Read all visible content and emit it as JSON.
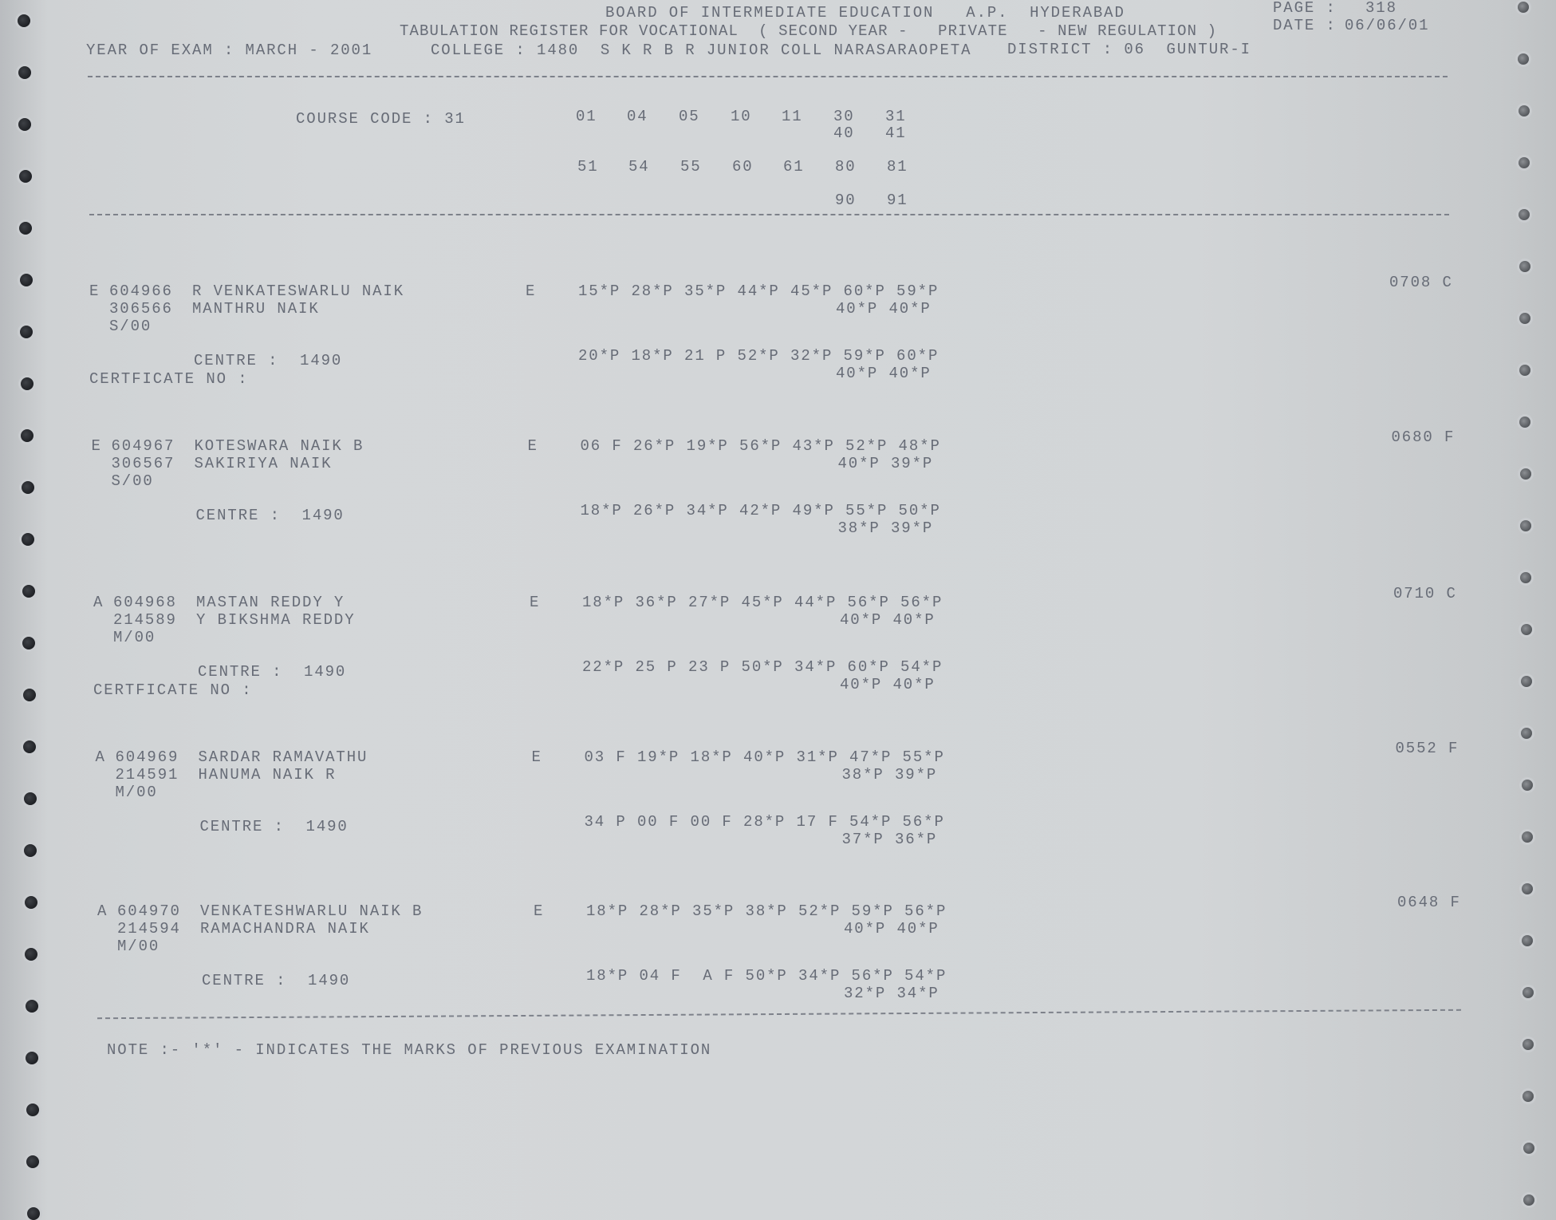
{
  "header": {
    "board": "BOARD OF INTERMEDIATE EDUCATION   A.P.  HYDERABAD",
    "page_label": "PAGE :",
    "page_number": "318",
    "register": "TABULATION REGISTER FOR VOCATIONAL  ( SECOND YEAR -   PRIVATE   - NEW REGULATION )",
    "date_label": "DATE :",
    "date": "06/06/01",
    "year_of_exam": "YEAR OF EXAM : MARCH - 2001",
    "college": "COLLEGE : 1480  S K R B R JUNIOR COLL NARASARAOPETA",
    "district": "DISTRICT : 06  GUNTUR-I"
  },
  "course": {
    "label": "COURSE CODE : 31",
    "codes_row1": [
      "01",
      "04",
      "05",
      "10",
      "11",
      "30",
      "31"
    ],
    "codes_row1b": [
      "40",
      "41"
    ],
    "codes_row2": [
      "51",
      "54",
      "55",
      "60",
      "61",
      "80",
      "81"
    ],
    "codes_row2b": [
      "90",
      "91"
    ]
  },
  "records": [
    {
      "category": "E",
      "roll": "604966",
      "name": "R VENKATESWARLU NAIK",
      "reg": "306566",
      "father": "MANTHRU NAIK",
      "code": "S/00",
      "medium": "E",
      "marks1": "15*P 28*P 35*P 44*P 45*P 60*P 59*P",
      "marks1b": "40*P 40*P",
      "centre": "CENTRE :  1490",
      "marks2": "20*P 18*P 21 P 52*P 32*P 59*P 60*P",
      "marks2b": "40*P 40*P",
      "certificate": "CERTFICATE NO :",
      "result": "0708 C"
    },
    {
      "category": "E",
      "roll": "604967",
      "name": "KOTESWARA NAIK B",
      "reg": "306567",
      "father": "SAKIRIYA NAIK",
      "code": "S/00",
      "medium": "E",
      "marks1": "06 F 26*P 19*P 56*P 43*P 52*P 48*P",
      "marks1b": "40*P 39*P",
      "centre": "CENTRE :  1490",
      "marks2": "18*P 26*P 34*P 42*P 49*P 55*P 50*P",
      "marks2b": "38*P 39*P",
      "certificate": "",
      "result": "0680 F"
    },
    {
      "category": "A",
      "roll": "604968",
      "name": "MASTAN REDDY Y",
      "reg": "214589",
      "father": "Y BIKSHMA REDDY",
      "code": "M/00",
      "medium": "E",
      "marks1": "18*P 36*P 27*P 45*P 44*P 56*P 56*P",
      "marks1b": "40*P 40*P",
      "centre": "CENTRE :  1490",
      "marks2": "22*P 25 P 23 P 50*P 34*P 60*P 54*P",
      "marks2b": "40*P 40*P",
      "certificate": "CERTFICATE NO :",
      "result": "0710 C"
    },
    {
      "category": "A",
      "roll": "604969",
      "name": "SARDAR RAMAVATHU",
      "reg": "214591",
      "father": "HANUMA NAIK R",
      "code": "M/00",
      "medium": "E",
      "marks1": "03 F 19*P 18*P 40*P 31*P 47*P 55*P",
      "marks1b": "38*P 39*P",
      "centre": "CENTRE :  1490",
      "marks2": "34 P 00 F 00 F 28*P 17 F 54*P 56*P",
      "marks2b": "37*P 36*P",
      "certificate": "",
      "result": "0552 F"
    },
    {
      "category": "A",
      "roll": "604970",
      "name": "VENKATESHWARLU NAIK B",
      "reg": "214594",
      "father": "RAMACHANDRA NAIK",
      "code": "M/00",
      "medium": "E",
      "marks1": "18*P 28*P 35*P 38*P 52*P 59*P 56*P",
      "marks1b": "40*P 40*P",
      "centre": "CENTRE :  1490",
      "marks2": "18*P 04 F  A F 50*P 34*P 56*P 54*P",
      "marks2b": "32*P 34*P",
      "certificate": "",
      "result": "0648 F"
    }
  ],
  "note": "NOTE :- '*' - INDICATES THE MARKS OF PREVIOUS EXAMINATION",
  "colors": {
    "ink": "#676c77",
    "paper": "#d3d6d8"
  }
}
